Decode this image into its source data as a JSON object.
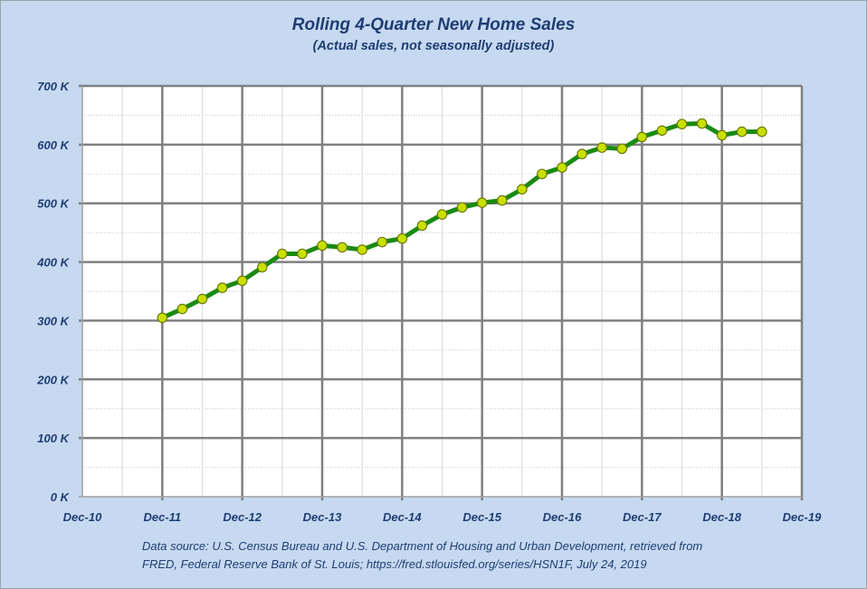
{
  "chart_data": {
    "type": "line",
    "title": "Rolling 4-Quarter New Home Sales",
    "subtitle": "(Actual sales, not seasonally adjusted)",
    "xlabel": "",
    "ylabel": "",
    "ylim": [
      0,
      700000
    ],
    "y_ticks": [
      "0 K",
      "100 K",
      "200 K",
      "300 K",
      "400 K",
      "500 K",
      "600 K",
      "700 K"
    ],
    "x_ticks": [
      "Dec-10",
      "Dec-11",
      "Dec-12",
      "Dec-13",
      "Dec-14",
      "Dec-15",
      "Dec-16",
      "Dec-17",
      "Dec-18",
      "Dec-19"
    ],
    "grid": true,
    "legend": null,
    "series": [
      {
        "name": "Rolling 4-Quarter New Home Sales",
        "color": "#1a8a12",
        "marker_color": "#c8e000",
        "x": [
          "Dec-11",
          "Mar-12",
          "Jun-12",
          "Sep-12",
          "Dec-12",
          "Mar-13",
          "Jun-13",
          "Sep-13",
          "Dec-13",
          "Mar-14",
          "Jun-14",
          "Sep-14",
          "Dec-14",
          "Mar-15",
          "Jun-15",
          "Sep-15",
          "Dec-15",
          "Mar-16",
          "Jun-16",
          "Sep-16",
          "Dec-16",
          "Mar-17",
          "Jun-17",
          "Sep-17",
          "Dec-17",
          "Mar-18",
          "Jun-18",
          "Sep-18",
          "Dec-18",
          "Mar-19",
          "Jun-19"
        ],
        "values": [
          305,
          320,
          337,
          356,
          368,
          391,
          414,
          414,
          428,
          425,
          421,
          434,
          440,
          462,
          481,
          493,
          501,
          505,
          524,
          550,
          561,
          584,
          595,
          593,
          613,
          624,
          635,
          636,
          616,
          622,
          622
        ],
        "unit": "K"
      }
    ]
  },
  "labels": {
    "title": "Rolling 4-Quarter New Home Sales",
    "subtitle": "(Actual sales, not seasonally adjusted)",
    "footnote_line1": "Data source: U.S. Census Bureau and U.S. Department of Housing and Urban Development, retrieved from",
    "footnote_line2": "FRED, Federal Reserve Bank of St. Louis; https://fred.stlouisfed.org/series/HSN1F, July 24, 2019"
  }
}
